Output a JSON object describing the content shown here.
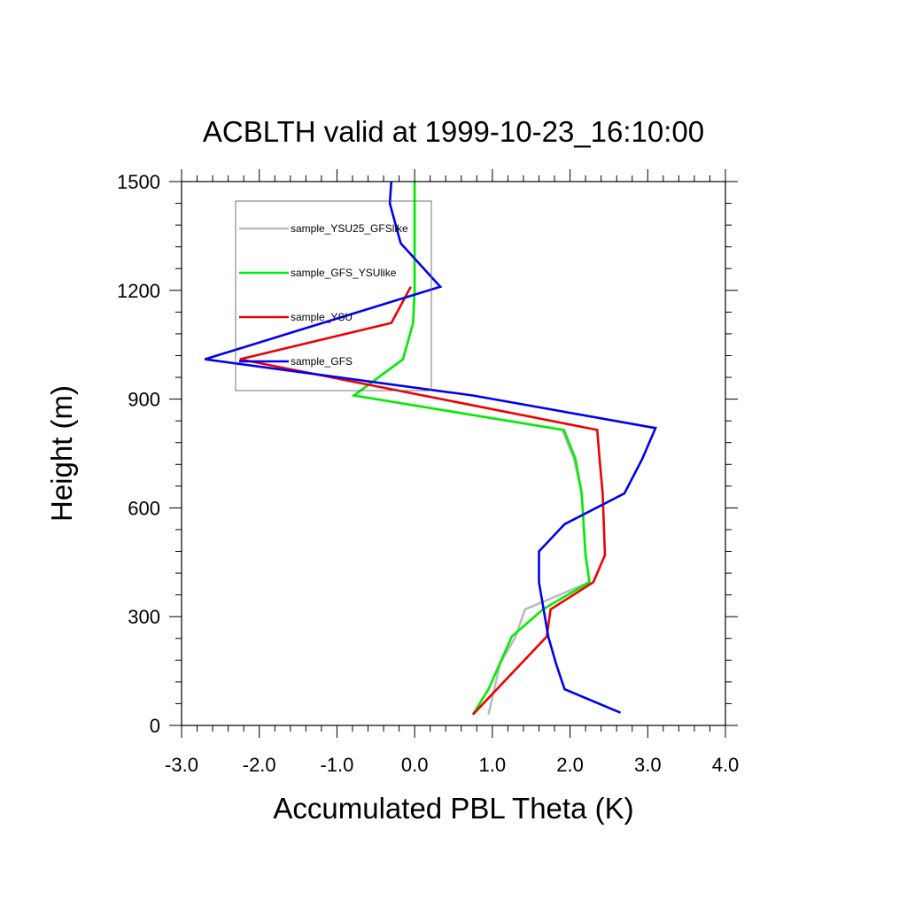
{
  "chart_data": {
    "type": "line",
    "title": "ACBLTH valid at 1999-10-23_16:10:00",
    "xlabel": "Accumulated PBL Theta (K)",
    "ylabel": "Height (m)",
    "xlim": [
      -3.0,
      4.0
    ],
    "ylim": [
      0,
      1500
    ],
    "xticks": [
      -3.0,
      -2.0,
      -1.0,
      0.0,
      1.0,
      2.0,
      3.0,
      4.0
    ],
    "xtick_labels": [
      "-3.0",
      "-2.0",
      "-1.0",
      "0.0",
      "1.0",
      "2.0",
      "3.0",
      "4.0"
    ],
    "yticks": [
      0,
      300,
      600,
      900,
      1200,
      1500
    ],
    "ytick_labels": [
      "0",
      "300",
      "600",
      "900",
      "1200",
      "1500"
    ],
    "grid": false,
    "legend_position": "top-left",
    "series": [
      {
        "name": "sample_YSU25_GFSlike",
        "color": "#bbbbbb",
        "x": [
          0.95,
          1.1,
          1.3,
          1.42,
          2.25,
          2.2,
          2.15,
          2.05,
          1.9,
          -0.78,
          -0.15,
          -0.02,
          0.0,
          0.0,
          0.0,
          0.0
        ],
        "y": [
          30,
          170,
          245,
          320,
          395,
          470,
          640,
          735,
          815,
          910,
          1010,
          1110,
          1200,
          1300,
          1420,
          1500
        ]
      },
      {
        "name": "sample_GFS_YSUlike",
        "color": "#00ee00",
        "x": [
          0.75,
          0.95,
          1.25,
          1.65,
          2.25,
          2.2,
          2.15,
          2.07,
          1.92,
          -0.78,
          -0.15,
          -0.02,
          0.0,
          0.0,
          0.0,
          0.0
        ],
        "y": [
          30,
          100,
          245,
          320,
          395,
          470,
          640,
          735,
          815,
          910,
          1010,
          1110,
          1200,
          1300,
          1420,
          1500
        ]
      },
      {
        "name": "sample_YSU",
        "color": "#ee0000",
        "x": [
          0.75,
          1.7,
          1.75,
          2.3,
          2.45,
          2.42,
          2.38,
          2.35,
          -2.25,
          -0.3,
          -0.05
        ],
        "y": [
          30,
          245,
          320,
          395,
          470,
          640,
          735,
          815,
          1010,
          1110,
          1210
        ]
      },
      {
        "name": "sample_GFS",
        "color": "#0000ee",
        "x": [
          2.65,
          1.93,
          1.82,
          1.72,
          1.6,
          1.6,
          1.93,
          2.7,
          2.93,
          3.1,
          0.75,
          -2.7,
          0.33,
          -0.18,
          -0.32,
          -0.3
        ],
        "y": [
          35,
          100,
          170,
          245,
          395,
          480,
          555,
          640,
          735,
          820,
          910,
          1010,
          1210,
          1330,
          1440,
          1500
        ]
      }
    ]
  }
}
